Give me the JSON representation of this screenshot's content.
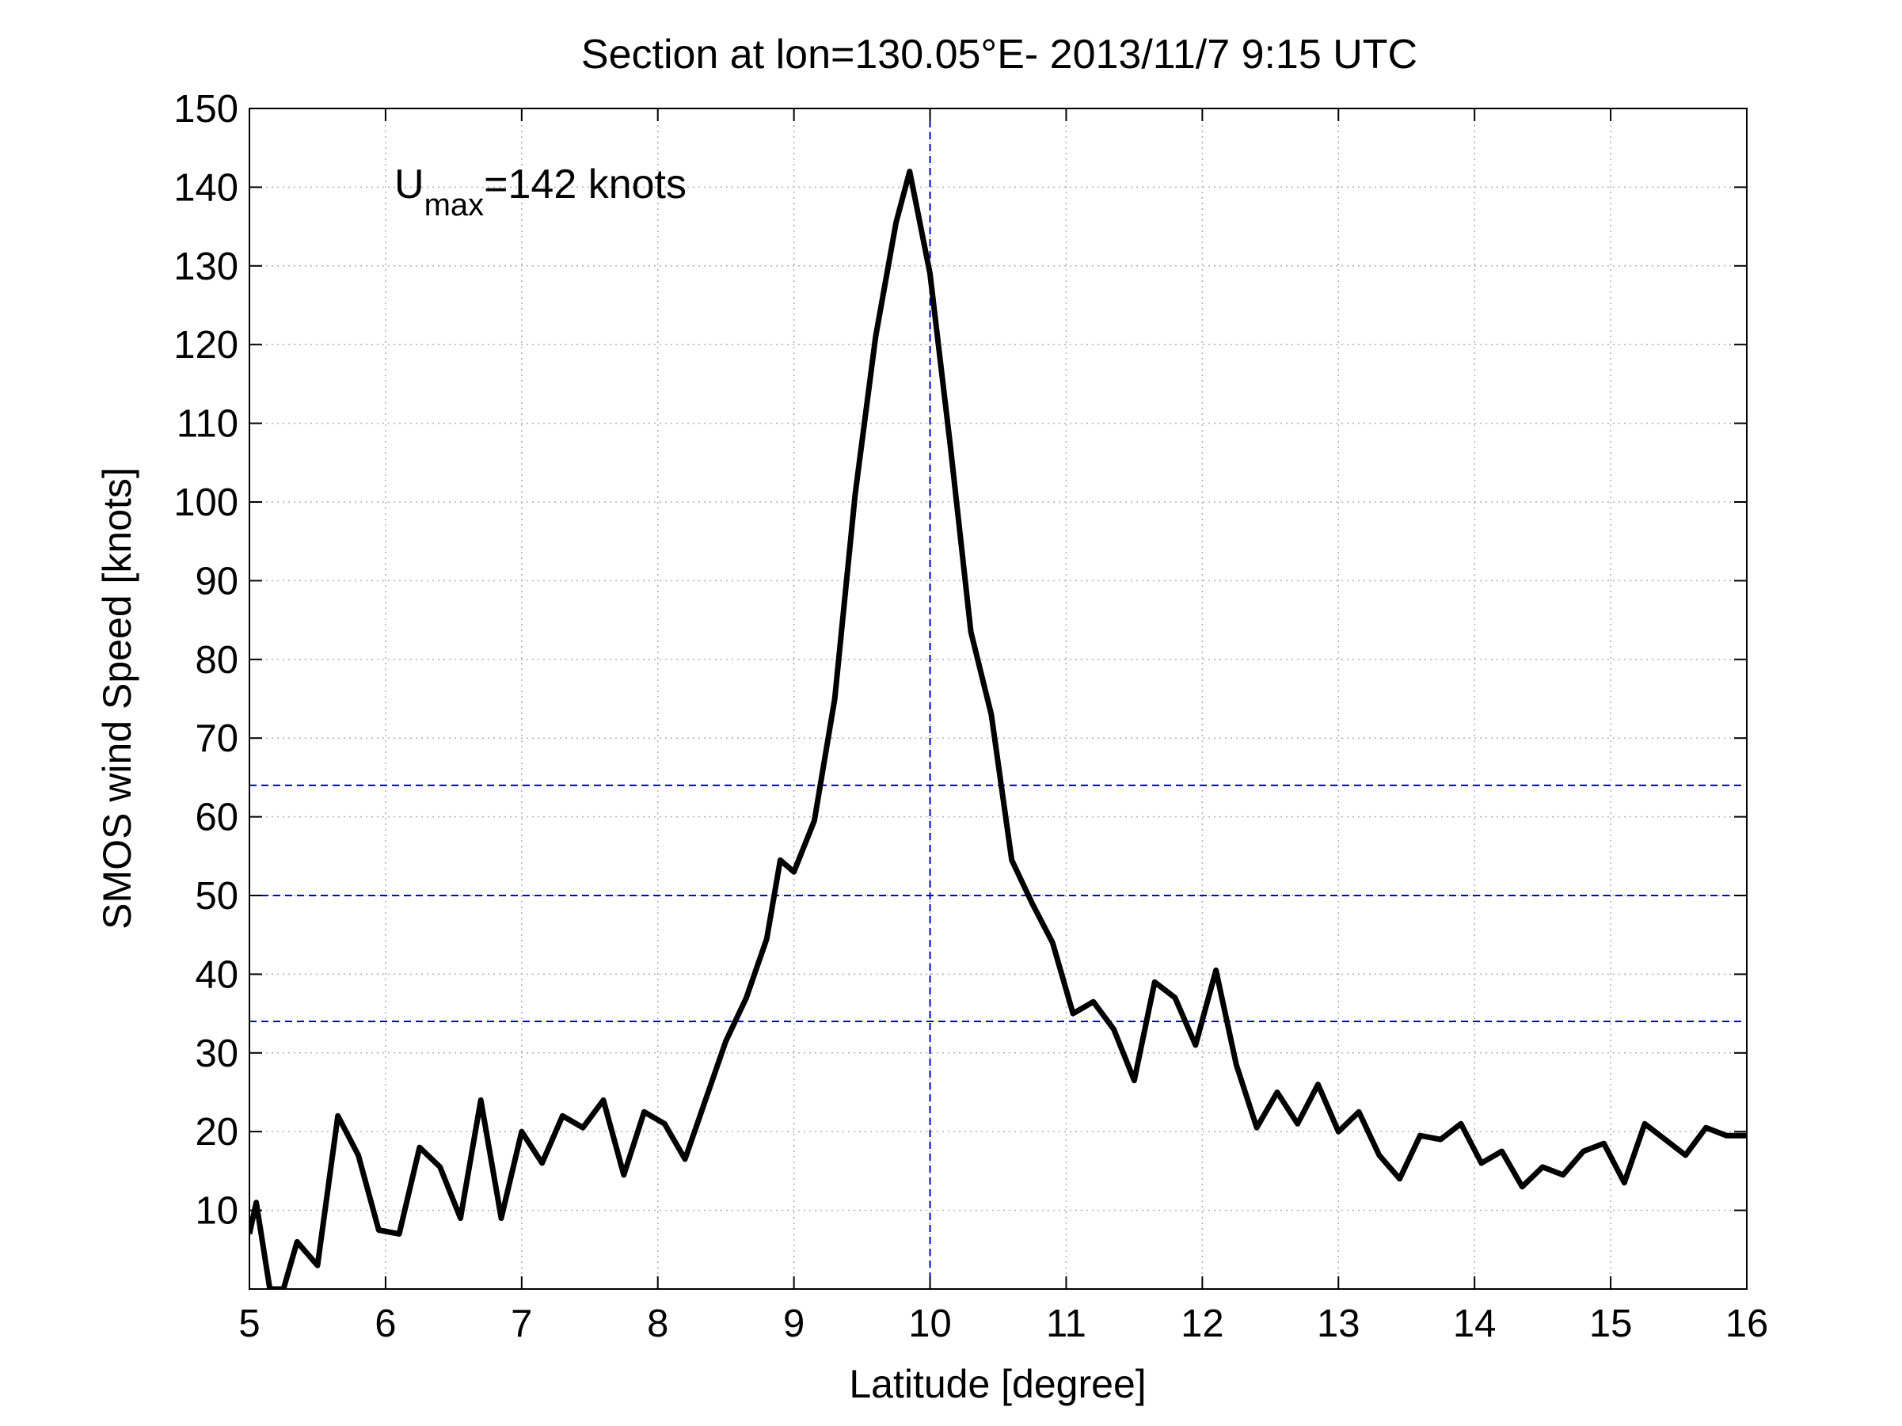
{
  "chart_data": {
    "type": "line",
    "title": "Section at lon=130.05°E- 2013/11/7 9:15 UTC",
    "xlabel": "Latitude [degree]",
    "ylabel": "SMOS wind Speed [knots]",
    "xlim": [
      5,
      16
    ],
    "ylim": [
      0,
      150
    ],
    "x_ticks": [
      5,
      6,
      7,
      8,
      9,
      10,
      11,
      12,
      13,
      14,
      15,
      16
    ],
    "y_ticks": [
      10,
      20,
      30,
      40,
      50,
      60,
      70,
      80,
      90,
      100,
      110,
      120,
      130,
      140,
      150
    ],
    "x_tick_labels": [
      "5",
      "6",
      "7",
      "8",
      "9",
      "10",
      "11",
      "12",
      "13",
      "14",
      "15",
      "16"
    ],
    "y_tick_labels": [
      "10",
      "20",
      "30",
      "40",
      "50",
      "60",
      "70",
      "80",
      "90",
      "100",
      "110",
      "120",
      "130",
      "140",
      "150"
    ],
    "grid": true,
    "annotation": {
      "main": "U",
      "subscript": "max",
      "rest": "=142 knots"
    },
    "reference_lines": {
      "color": "#0000cc",
      "style": "dashed",
      "horizontal_y": [
        64,
        50,
        34
      ],
      "vertical_x": [
        10
      ]
    },
    "series": [
      {
        "color": "#000000",
        "x": [
          5.0,
          5.05,
          5.15,
          5.25,
          5.35,
          5.5,
          5.65,
          5.8,
          5.95,
          6.1,
          6.25,
          6.4,
          6.55,
          6.7,
          6.85,
          7.0,
          7.15,
          7.3,
          7.45,
          7.6,
          7.75,
          7.9,
          8.05,
          8.2,
          8.35,
          8.5,
          8.65,
          8.8,
          8.9,
          9.0,
          9.15,
          9.3,
          9.45,
          9.6,
          9.75,
          9.85,
          10.0,
          10.15,
          10.3,
          10.45,
          10.6,
          10.75,
          10.9,
          11.05,
          11.2,
          11.35,
          11.5,
          11.65,
          11.8,
          11.95,
          12.1,
          12.25,
          12.4,
          12.55,
          12.7,
          12.85,
          13.0,
          13.15,
          13.3,
          13.45,
          13.6,
          13.75,
          13.9,
          14.05,
          14.2,
          14.35,
          14.5,
          14.65,
          14.8,
          14.95,
          15.1,
          15.25,
          15.4,
          15.55,
          15.7,
          15.85,
          16.0
        ],
        "y": [
          7,
          11,
          0,
          0,
          6,
          3,
          22,
          17,
          7.5,
          7,
          18,
          15.5,
          9,
          24,
          9,
          20,
          16,
          22,
          20.5,
          24,
          14.5,
          22.5,
          21,
          16.5,
          24,
          31.5,
          37,
          44.5,
          54.5,
          53,
          59.5,
          75,
          101,
          121,
          135.5,
          142,
          129,
          107,
          83.5,
          73,
          54.5,
          49,
          44,
          35,
          36.5,
          33,
          26.5,
          39,
          37,
          31,
          40.5,
          28.5,
          20.5,
          25,
          21,
          26,
          20,
          22.5,
          17,
          14,
          19.5,
          19,
          21,
          16,
          17.5,
          13,
          15.5,
          14.5,
          17.5,
          18.5,
          13.5,
          21,
          19,
          17,
          20.5,
          19.5,
          19.5
        ]
      }
    ]
  }
}
